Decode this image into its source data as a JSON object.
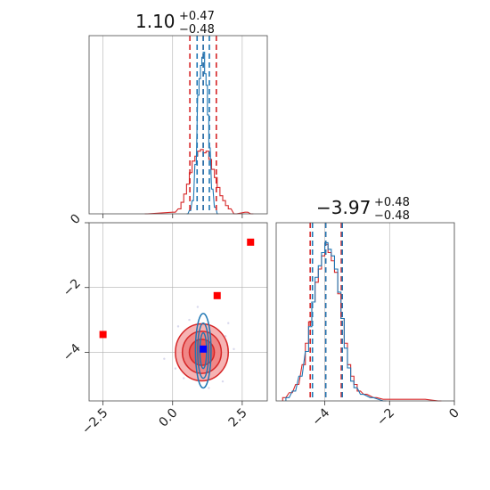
{
  "chart_data": {
    "type": "corner",
    "colors": {
      "red": "#d62728",
      "blue": "#1f77b4",
      "red_fill": "#f4a6a6",
      "red_fill_dark": "#e35454",
      "marker_red": "#ff0000",
      "marker_blue": "#0000ff"
    },
    "params": [
      {
        "median_label": "1.10",
        "plus_label": "+0.47",
        "minus_label": "−0.48",
        "range": [
          -3.0,
          3.4
        ],
        "ticks": [
          -2.5,
          0.0,
          2.5
        ],
        "tick_labels": [
          "−2.5",
          "0.0",
          "2.5"
        ],
        "quantiles_red": [
          0.62,
          1.1,
          1.57
        ],
        "quantiles_blue": [
          0.88,
          1.1,
          1.32
        ]
      },
      {
        "median_label": "−3.97",
        "plus_label": "+0.48",
        "minus_label": "−0.48",
        "range": [
          -5.5,
          0.0
        ],
        "ticks": [
          -4,
          -2,
          0
        ],
        "tick_labels": [
          "−4",
          "−2",
          "0"
        ],
        "quantiles_red": [
          -4.45,
          -3.97,
          -3.49
        ],
        "quantiles_blue": [
          -4.38,
          -3.97,
          -3.46
        ]
      }
    ],
    "hist_x": {
      "red": [
        [
          -1.0,
          0.0
        ],
        [
          0.0,
          0.01
        ],
        [
          0.2,
          0.03
        ],
        [
          0.3,
          0.07
        ],
        [
          0.4,
          0.12
        ],
        [
          0.5,
          0.18
        ],
        [
          0.6,
          0.25
        ],
        [
          0.7,
          0.32
        ],
        [
          0.8,
          0.35
        ],
        [
          0.9,
          0.38
        ],
        [
          1.0,
          0.39
        ],
        [
          1.1,
          0.37
        ],
        [
          1.2,
          0.38
        ],
        [
          1.3,
          0.33
        ],
        [
          1.4,
          0.27
        ],
        [
          1.5,
          0.22
        ],
        [
          1.6,
          0.16
        ],
        [
          1.7,
          0.11
        ],
        [
          1.8,
          0.08
        ],
        [
          1.9,
          0.05
        ],
        [
          2.0,
          0.03
        ],
        [
          2.2,
          0.0
        ],
        [
          2.6,
          0.01
        ],
        [
          2.8,
          0.0
        ]
      ],
      "blue": [
        [
          0.5,
          0.0
        ],
        [
          0.6,
          0.02
        ],
        [
          0.7,
          0.08
        ],
        [
          0.8,
          0.3
        ],
        [
          0.9,
          0.72
        ],
        [
          0.95,
          0.82
        ],
        [
          1.0,
          0.9
        ],
        [
          1.05,
          0.95
        ],
        [
          1.1,
          0.98
        ],
        [
          1.15,
          0.85
        ],
        [
          1.2,
          0.78
        ],
        [
          1.25,
          0.6
        ],
        [
          1.3,
          0.4
        ],
        [
          1.4,
          0.15
        ],
        [
          1.5,
          0.04
        ],
        [
          1.6,
          0.0
        ]
      ]
    },
    "hist_y": {
      "red": [
        [
          -5.3,
          0.02
        ],
        [
          -5.1,
          0.05
        ],
        [
          -4.9,
          0.1
        ],
        [
          -4.7,
          0.22
        ],
        [
          -4.6,
          0.35
        ],
        [
          -4.5,
          0.48
        ],
        [
          -4.4,
          0.6
        ],
        [
          -4.3,
          0.72
        ],
        [
          -4.2,
          0.8
        ],
        [
          -4.1,
          0.88
        ],
        [
          -4.0,
          0.95
        ],
        [
          -3.9,
          0.9
        ],
        [
          -3.8,
          0.85
        ],
        [
          -3.7,
          0.78
        ],
        [
          -3.6,
          0.65
        ],
        [
          -3.5,
          0.5
        ],
        [
          -3.4,
          0.35
        ],
        [
          -3.3,
          0.22
        ],
        [
          -3.2,
          0.15
        ],
        [
          -3.1,
          0.1
        ],
        [
          -3.0,
          0.06
        ],
        [
          -2.8,
          0.04
        ],
        [
          -2.5,
          0.02
        ],
        [
          -2.2,
          0.01
        ],
        [
          -1.0,
          0.01
        ],
        [
          -0.5,
          0.0
        ]
      ],
      "blue": [
        [
          -5.2,
          0.02
        ],
        [
          -5.0,
          0.06
        ],
        [
          -4.8,
          0.15
        ],
        [
          -4.6,
          0.3
        ],
        [
          -4.5,
          0.45
        ],
        [
          -4.4,
          0.6
        ],
        [
          -4.3,
          0.75
        ],
        [
          -4.2,
          0.82
        ],
        [
          -4.1,
          0.9
        ],
        [
          -4.0,
          0.96
        ],
        [
          -3.9,
          0.92
        ],
        [
          -3.8,
          0.88
        ],
        [
          -3.7,
          0.8
        ],
        [
          -3.6,
          0.66
        ],
        [
          -3.5,
          0.5
        ],
        [
          -3.4,
          0.32
        ],
        [
          -3.3,
          0.2
        ],
        [
          -3.2,
          0.12
        ],
        [
          -3.1,
          0.08
        ],
        [
          -2.9,
          0.04
        ],
        [
          -2.6,
          0.02
        ],
        [
          -2.2,
          0.0
        ]
      ]
    },
    "contours": {
      "red": [
        {
          "cx": 1.05,
          "cy": -4.0,
          "rx": 0.95,
          "ry": 0.88
        },
        {
          "cx": 1.05,
          "cy": -4.0,
          "rx": 0.7,
          "ry": 0.65
        },
        {
          "cx": 1.05,
          "cy": -4.0,
          "rx": 0.45,
          "ry": 0.4
        }
      ],
      "blue": [
        {
          "cx": 1.1,
          "cy": -3.95,
          "rx": 0.28,
          "ry": 1.15
        },
        {
          "cx": 1.1,
          "cy": -3.95,
          "rx": 0.2,
          "ry": 0.85
        },
        {
          "cx": 1.1,
          "cy": -3.95,
          "rx": 0.12,
          "ry": 0.55
        }
      ]
    },
    "markers_red": [
      [
        -2.5,
        -3.45
      ],
      [
        1.6,
        -2.25
      ],
      [
        2.8,
        -0.6
      ]
    ],
    "marker_blue": [
      1.1,
      -3.9
    ]
  }
}
